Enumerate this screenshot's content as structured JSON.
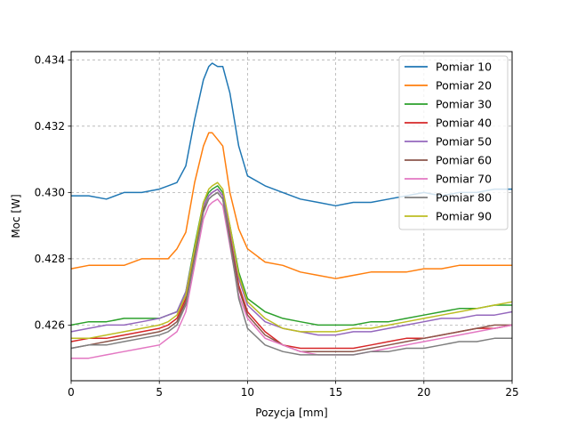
{
  "chart_data": {
    "type": "line",
    "xlabel": "Pozycja [mm]",
    "ylabel": "Moc [W]",
    "xlim": [
      0,
      25
    ],
    "ylim": [
      0.42432,
      0.43425
    ],
    "xticks": [
      "0",
      "5",
      "10",
      "15",
      "20",
      "25"
    ],
    "yticks": [
      "0.426",
      "0.428",
      "0.430",
      "0.432",
      "0.434"
    ],
    "grid": true,
    "legend_position": "top-right",
    "series": [
      {
        "name": "Pomiar 10",
        "color": "#1f77b4",
        "x": [
          0,
          1,
          2,
          3,
          4,
          5,
          5.5,
          6,
          6.5,
          7,
          7.5,
          7.8,
          8,
          8.3,
          8.6,
          9,
          9.5,
          10,
          11,
          12,
          13,
          14,
          15,
          16,
          17,
          18,
          19,
          20,
          21,
          22,
          23,
          24,
          25
        ],
        "y": [
          0.4299,
          0.4299,
          0.4298,
          0.43,
          0.43,
          0.4301,
          0.4302,
          0.4303,
          0.4308,
          0.4322,
          0.4334,
          0.4338,
          0.4339,
          0.4338,
          0.4338,
          0.433,
          0.4314,
          0.4305,
          0.4302,
          0.43,
          0.4298,
          0.4297,
          0.4296,
          0.4297,
          0.4297,
          0.4298,
          0.4299,
          0.43,
          0.4299,
          0.43,
          0.43,
          0.4301,
          0.4301
        ]
      },
      {
        "name": "Pomiar 20",
        "color": "#ff7f0e",
        "x": [
          0,
          1,
          2,
          3,
          4,
          5,
          5.5,
          6,
          6.5,
          7,
          7.5,
          7.8,
          8,
          8.3,
          8.6,
          9,
          9.5,
          10,
          11,
          12,
          13,
          14,
          15,
          16,
          17,
          18,
          19,
          20,
          21,
          22,
          23,
          24,
          25
        ],
        "y": [
          0.4277,
          0.4278,
          0.4278,
          0.4278,
          0.428,
          0.428,
          0.428,
          0.4283,
          0.4288,
          0.4303,
          0.4314,
          0.4318,
          0.4318,
          0.4316,
          0.4314,
          0.43,
          0.4289,
          0.4283,
          0.4279,
          0.4278,
          0.4276,
          0.4275,
          0.4274,
          0.4275,
          0.4276,
          0.4276,
          0.4276,
          0.4277,
          0.4277,
          0.4278,
          0.4278,
          0.4278,
          0.4278
        ]
      },
      {
        "name": "Pomiar 30",
        "color": "#2ca02c",
        "x": [
          0,
          1,
          2,
          3,
          4,
          5,
          5.5,
          6,
          6.5,
          7,
          7.5,
          7.8,
          8,
          8.3,
          8.6,
          9,
          9.5,
          10,
          11,
          12,
          13,
          14,
          15,
          16,
          17,
          18,
          19,
          20,
          21,
          22,
          23,
          24,
          25
        ],
        "y": [
          0.426,
          0.4261,
          0.4261,
          0.4262,
          0.4262,
          0.4262,
          0.4263,
          0.4264,
          0.427,
          0.4284,
          0.4297,
          0.43,
          0.4301,
          0.4302,
          0.43,
          0.429,
          0.4276,
          0.4268,
          0.4264,
          0.4262,
          0.4261,
          0.426,
          0.426,
          0.426,
          0.4261,
          0.4261,
          0.4262,
          0.4263,
          0.4264,
          0.4265,
          0.4265,
          0.4266,
          0.4266
        ]
      },
      {
        "name": "Pomiar 40",
        "color": "#d62728",
        "x": [
          0,
          1,
          2,
          3,
          4,
          5,
          5.5,
          6,
          6.5,
          7,
          7.5,
          7.8,
          8,
          8.3,
          8.6,
          9,
          9.5,
          10,
          11,
          12,
          13,
          14,
          15,
          16,
          17,
          18,
          19,
          20,
          21,
          22,
          23,
          24,
          25
        ],
        "y": [
          0.4255,
          0.4256,
          0.4256,
          0.4257,
          0.4258,
          0.4259,
          0.426,
          0.4262,
          0.4268,
          0.4282,
          0.4296,
          0.4299,
          0.43,
          0.4301,
          0.4299,
          0.4287,
          0.4272,
          0.4264,
          0.4258,
          0.4254,
          0.4253,
          0.4253,
          0.4253,
          0.4253,
          0.4254,
          0.4255,
          0.4256,
          0.4256,
          0.4257,
          0.4258,
          0.4259,
          0.4259,
          0.426
        ]
      },
      {
        "name": "Pomiar 50",
        "color": "#9467bd",
        "x": [
          0,
          1,
          2,
          3,
          4,
          5,
          5.5,
          6,
          6.5,
          7,
          7.5,
          7.8,
          8,
          8.3,
          8.6,
          9,
          9.5,
          10,
          11,
          12,
          13,
          14,
          15,
          16,
          17,
          18,
          19,
          20,
          21,
          22,
          23,
          24,
          25
        ],
        "y": [
          0.4258,
          0.4259,
          0.426,
          0.426,
          0.4261,
          0.4262,
          0.4263,
          0.4264,
          0.427,
          0.4283,
          0.4296,
          0.4299,
          0.43,
          0.4301,
          0.4299,
          0.4289,
          0.4274,
          0.4266,
          0.4261,
          0.4259,
          0.4258,
          0.4257,
          0.4257,
          0.4258,
          0.4258,
          0.4259,
          0.426,
          0.4261,
          0.4262,
          0.4262,
          0.4263,
          0.4263,
          0.4264
        ]
      },
      {
        "name": "Pomiar 60",
        "color": "#8c564b",
        "x": [
          0,
          1,
          2,
          3,
          4,
          5,
          5.5,
          6,
          6.5,
          7,
          7.5,
          7.8,
          8,
          8.3,
          8.6,
          9,
          9.5,
          10,
          11,
          12,
          13,
          14,
          15,
          16,
          17,
          18,
          19,
          20,
          21,
          22,
          23,
          24,
          25
        ],
        "y": [
          0.4253,
          0.4254,
          0.4255,
          0.4256,
          0.4257,
          0.4258,
          0.4259,
          0.4261,
          0.4267,
          0.4281,
          0.4295,
          0.4298,
          0.4299,
          0.43,
          0.4298,
          0.4286,
          0.4271,
          0.4263,
          0.4257,
          0.4254,
          0.4252,
          0.4252,
          0.4252,
          0.4252,
          0.4253,
          0.4254,
          0.4255,
          0.4256,
          0.4257,
          0.4258,
          0.4259,
          0.426,
          0.426
        ]
      },
      {
        "name": "Pomiar 70",
        "color": "#e377c2",
        "x": [
          0,
          1,
          2,
          3,
          4,
          5,
          5.5,
          6,
          6.5,
          7,
          7.5,
          7.8,
          8,
          8.3,
          8.6,
          9,
          9.5,
          10,
          11,
          12,
          13,
          14,
          15,
          16,
          17,
          18,
          19,
          20,
          21,
          22,
          23,
          24,
          25
        ],
        "y": [
          0.425,
          0.425,
          0.4251,
          0.4252,
          0.4253,
          0.4254,
          0.4256,
          0.4258,
          0.4264,
          0.4278,
          0.4292,
          0.4296,
          0.4297,
          0.4298,
          0.4296,
          0.4284,
          0.4269,
          0.4262,
          0.4256,
          0.4254,
          0.4252,
          0.4251,
          0.4251,
          0.4251,
          0.4252,
          0.4253,
          0.4254,
          0.4255,
          0.4256,
          0.4257,
          0.4258,
          0.4259,
          0.426
        ]
      },
      {
        "name": "Pomiar 80",
        "color": "#7f7f7f",
        "x": [
          0,
          1,
          2,
          3,
          4,
          5,
          5.5,
          6,
          6.5,
          7,
          7.5,
          7.8,
          8,
          8.3,
          8.6,
          9,
          9.5,
          10,
          11,
          12,
          13,
          14,
          15,
          16,
          17,
          18,
          19,
          20,
          21,
          22,
          23,
          24,
          25
        ],
        "y": [
          0.4253,
          0.4254,
          0.4254,
          0.4255,
          0.4256,
          0.4257,
          0.4258,
          0.426,
          0.4266,
          0.428,
          0.4294,
          0.4298,
          0.4299,
          0.43,
          0.4298,
          0.4285,
          0.4268,
          0.4259,
          0.4254,
          0.4252,
          0.4251,
          0.4251,
          0.4251,
          0.4251,
          0.4252,
          0.4252,
          0.4253,
          0.4253,
          0.4254,
          0.4255,
          0.4255,
          0.4256,
          0.4256
        ]
      },
      {
        "name": "Pomiar 90",
        "color": "#bcbd22",
        "x": [
          0,
          1,
          2,
          3,
          4,
          5,
          5.5,
          6,
          6.5,
          7,
          7.5,
          7.8,
          8,
          8.3,
          8.6,
          9,
          9.5,
          10,
          11,
          12,
          13,
          14,
          15,
          16,
          17,
          18,
          19,
          20,
          21,
          22,
          23,
          24,
          25
        ],
        "y": [
          0.4256,
          0.4256,
          0.4257,
          0.4258,
          0.4259,
          0.426,
          0.4261,
          0.4263,
          0.4269,
          0.4283,
          0.4297,
          0.4301,
          0.4302,
          0.4303,
          0.4301,
          0.429,
          0.4275,
          0.4267,
          0.4262,
          0.4259,
          0.4258,
          0.4258,
          0.4258,
          0.4259,
          0.4259,
          0.426,
          0.4261,
          0.4262,
          0.4263,
          0.4264,
          0.4265,
          0.4266,
          0.4267
        ]
      }
    ]
  }
}
